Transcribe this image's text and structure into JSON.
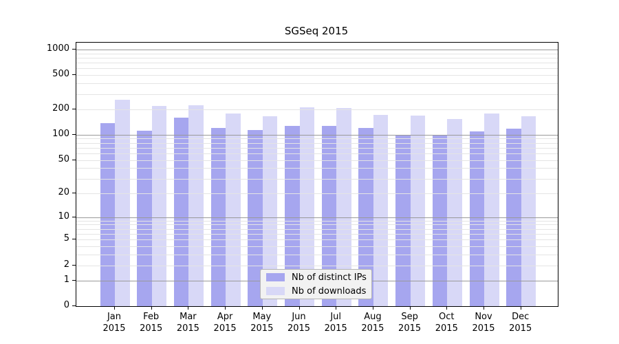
{
  "title": "SGSeq 2015",
  "chart_data": {
    "type": "bar",
    "title": "SGSeq 2015",
    "scale": "log10(value+1)",
    "ylim": [
      0,
      1200
    ],
    "grid": "horizontal, minor log ticks light gray, powers of 10 dark gray, drawn over bars",
    "legend_position": "bottom-center inside plot",
    "y_ticks": [
      1000,
      500,
      200,
      100,
      50,
      20,
      10,
      5,
      2,
      1,
      0
    ],
    "categories": [
      "Jan",
      "Feb",
      "Mar",
      "Apr",
      "May",
      "Jun",
      "Jul",
      "Aug",
      "Sep",
      "Oct",
      "Nov",
      "Dec"
    ],
    "x_tick_labels": [
      [
        "Jan",
        "2015"
      ],
      [
        "Feb",
        "2015"
      ],
      [
        "Mar",
        "2015"
      ],
      [
        "Apr",
        "2015"
      ],
      [
        "May",
        "2015"
      ],
      [
        "Jun",
        "2015"
      ],
      [
        "Jul",
        "2015"
      ],
      [
        "Aug",
        "2015"
      ],
      [
        "Sep",
        "2015"
      ],
      [
        "Oct",
        "2015"
      ],
      [
        "Nov",
        "2015"
      ],
      [
        "Dec",
        "2015"
      ]
    ],
    "series": [
      {
        "name": "Nb of distinct IPs",
        "color": "#a6a6ef",
        "values": [
          137,
          112,
          159,
          120,
          113,
          127,
          127,
          121,
          99,
          97,
          109,
          118
        ]
      },
      {
        "name": "Nb of downloads",
        "color": "#d8d8f7",
        "values": [
          258,
          216,
          223,
          178,
          164,
          209,
          205,
          171,
          167,
          154,
          178,
          165
        ]
      }
    ]
  },
  "colors": {
    "background": "#ffffff",
    "axis": "#000000",
    "grid_minor": "#e4e4e4",
    "grid_major": "#999999",
    "legend_background": "#f2f2f2",
    "legend_border": "#b3b3b3",
    "text": "#000000"
  }
}
